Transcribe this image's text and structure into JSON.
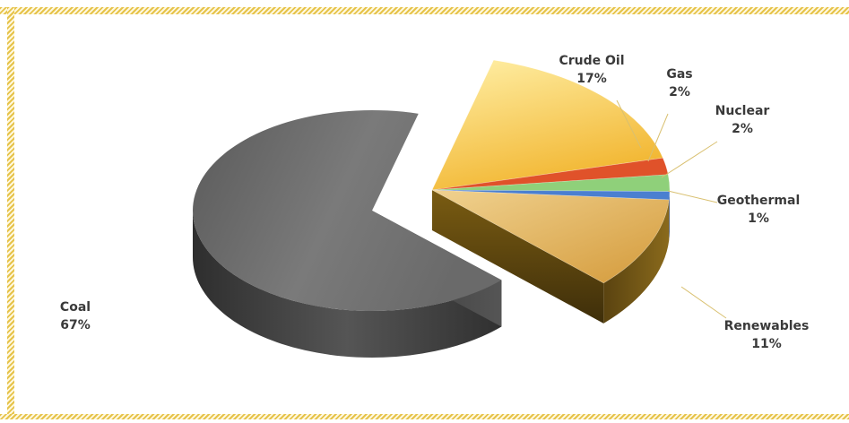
{
  "chart_data": {
    "type": "pie",
    "title": "",
    "categories": [
      "Coal",
      "Crude Oil",
      "Gas",
      "Nuclear",
      "Geothermal",
      "Renewables"
    ],
    "values": [
      67,
      17,
      2,
      2,
      1,
      11
    ],
    "value_labels": [
      "67%",
      "17%",
      "2%",
      "2%",
      "1%",
      "11%"
    ],
    "exploded": [
      "Crude Oil",
      "Gas",
      "Nuclear",
      "Geothermal",
      "Renewables"
    ],
    "colors": {
      "Coal": "#6e6e6e",
      "Crude Oil": "#f2c14a",
      "Gas": "#e0522a",
      "Nuclear": "#8fd07a",
      "Geothermal": "#4a7fd0",
      "Renewables": "#e8b24a"
    },
    "legend": "none (labels beside slices)",
    "style": "3d"
  }
}
